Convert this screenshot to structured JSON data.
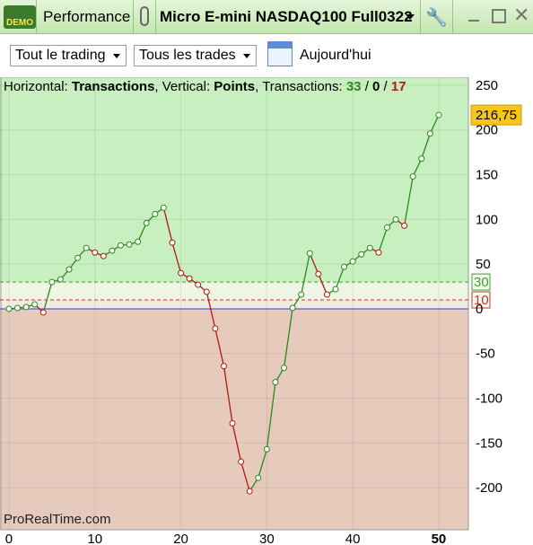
{
  "header": {
    "badge": "DEMO",
    "tab": "Performance",
    "instrument": "Micro E-mini NASDAQ100 Full0322"
  },
  "toolbar": {
    "filter1": "Tout le trading",
    "filter2": "Tous les trades",
    "period": "Aujourd'hui"
  },
  "chart_data": {
    "type": "line",
    "info": {
      "horizontal_label": "Horizontal: ",
      "horizontal": "Transactions",
      "vertical_label": ", Vertical: ",
      "vertical": "Points",
      "count_label": ", Transactions: ",
      "wins": 33,
      "neutral": 0,
      "losses": 17,
      "separator": " / "
    },
    "watermark": "ProRealTime.com",
    "x": [
      0,
      1,
      2,
      3,
      4,
      5,
      6,
      7,
      8,
      9,
      10,
      11,
      12,
      13,
      14,
      15,
      16,
      17,
      18,
      19,
      20,
      21,
      22,
      23,
      24,
      25,
      26,
      27,
      28,
      29,
      30,
      31,
      32,
      33,
      34,
      35,
      36,
      37,
      38,
      39,
      40,
      41,
      42,
      43,
      44,
      45,
      46,
      47,
      48,
      49,
      50
    ],
    "values": [
      0,
      1,
      2,
      5,
      -4,
      30,
      33,
      44,
      57,
      68,
      63,
      59,
      65,
      71,
      72,
      75,
      96,
      106,
      113,
      74,
      40,
      34,
      27,
      19,
      -22,
      -64,
      -128,
      -171,
      -204,
      -189,
      -157,
      -82,
      -66,
      1,
      16,
      62,
      39,
      16,
      22,
      47,
      53,
      61,
      68,
      63,
      91,
      100,
      93,
      148,
      168,
      196,
      216.75
    ],
    "last_label": {
      "value": 216.75,
      "label": "216,75"
    },
    "up_color": "#2a8a1a",
    "down_color": "#b01a10",
    "thresholds": [
      {
        "value": 30,
        "color": "#3aa02a"
      },
      {
        "value": 10,
        "color": "#c0392b"
      }
    ],
    "xlim": [
      -1.04,
      53.45
    ],
    "ylim": [
      -247,
      259
    ],
    "xticks": [
      0,
      10,
      20,
      30,
      40,
      50
    ],
    "yticks": [
      250,
      200,
      150,
      100,
      50,
      0,
      -50,
      -100,
      -150,
      -200
    ],
    "grid": true
  }
}
